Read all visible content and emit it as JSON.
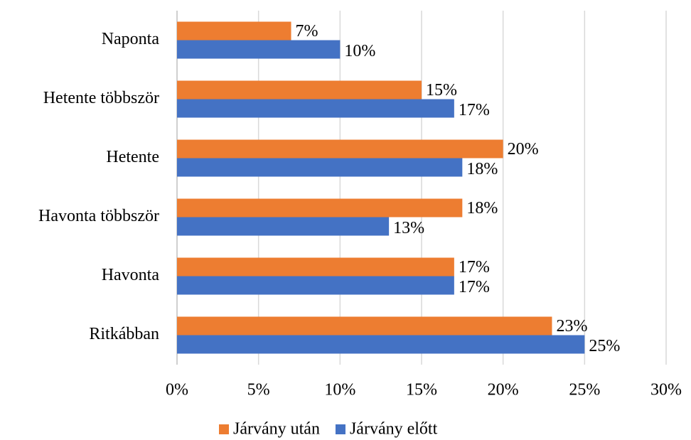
{
  "chart_data": {
    "type": "hbar",
    "categories": [
      "Naponta",
      "Hetente többször",
      "Hetente",
      "Havonta többször",
      "Havonta",
      "Ritkábban"
    ],
    "series": [
      {
        "name": "Járvány után",
        "color": "#ed7d31",
        "values": [
          7,
          15,
          20,
          17.5,
          17,
          23
        ],
        "value_labels": [
          "7%",
          "15%",
          "20%",
          "18%",
          "17%",
          "23%"
        ]
      },
      {
        "name": "Járvány előtt",
        "color": "#4472c4",
        "values": [
          10,
          17,
          17.5,
          13,
          17,
          25
        ],
        "value_labels": [
          "10%",
          "17%",
          "18%",
          "13%",
          "17%",
          "25%"
        ]
      }
    ],
    "xlim": [
      0,
      30
    ],
    "xticks": [
      {
        "value": 0,
        "label": "0%"
      },
      {
        "value": 5,
        "label": "5%"
      },
      {
        "value": 10,
        "label": "10%"
      },
      {
        "value": 15,
        "label": "15%"
      },
      {
        "value": 20,
        "label": "20%"
      },
      {
        "value": 25,
        "label": "25%"
      },
      {
        "value": 30,
        "label": "30%"
      }
    ],
    "grid": true,
    "legend": "bottom"
  }
}
